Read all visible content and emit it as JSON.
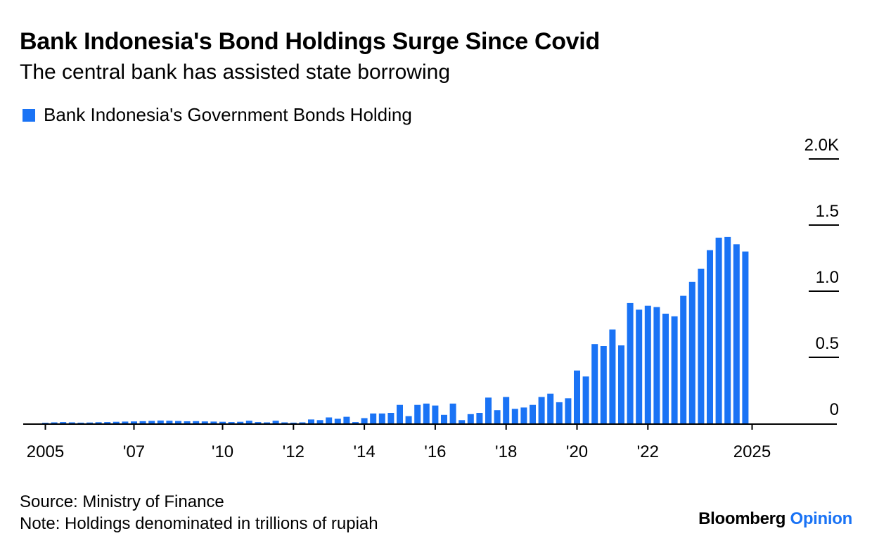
{
  "header": {
    "title": "Bank Indonesia's Bond Holdings Surge Since Covid",
    "subtitle": "The central bank has assisted state borrowing"
  },
  "legend": {
    "label": "Bank Indonesia's Government Bonds Holding",
    "color": "#1a73f5"
  },
  "footer": {
    "source": "Source: Ministry of Finance",
    "note": "Note: Holdings denominated in trillions of rupiah"
  },
  "brand": {
    "name": "Bloomberg",
    "suffix": "Opinion"
  },
  "chart_data": {
    "type": "bar",
    "title": "Bank Indonesia's Bond Holdings Surge Since Covid",
    "subtitle": "The central bank has assisted state borrowing",
    "xlabel": "",
    "ylabel": "",
    "x_axis": "time (quarterly)",
    "x_start": "2005-Q1",
    "x_ticks": [
      "2005",
      "'07",
      "'10",
      "'12",
      "'14",
      "'16",
      "'18",
      "'20",
      "'22",
      "2025"
    ],
    "y_ticks": [
      "0",
      "0.5",
      "1.0",
      "1.5",
      "2.0K"
    ],
    "ylim": [
      0,
      2000
    ],
    "y_axis_side": "right",
    "grid": false,
    "legend_position": "top-left",
    "series": [
      {
        "name": "Bank Indonesia's Government Bonds Holding",
        "color": "#1a73f5",
        "values": [
          5,
          8,
          10,
          8,
          6,
          7,
          9,
          10,
          12,
          14,
          15,
          17,
          19,
          22,
          20,
          18,
          16,
          17,
          15,
          14,
          12,
          10,
          12,
          20,
          10,
          8,
          20,
          8,
          6,
          8,
          30,
          25,
          45,
          35,
          50,
          10,
          40,
          75,
          75,
          80,
          140,
          55,
          140,
          150,
          135,
          65,
          150,
          25,
          70,
          80,
          195,
          100,
          200,
          110,
          120,
          140,
          200,
          225,
          160,
          190,
          400,
          355,
          600,
          585,
          710,
          590,
          910,
          860,
          890,
          880,
          830,
          810,
          965,
          1070,
          1170,
          1310,
          1405,
          1410,
          1355,
          1300
        ]
      }
    ]
  }
}
